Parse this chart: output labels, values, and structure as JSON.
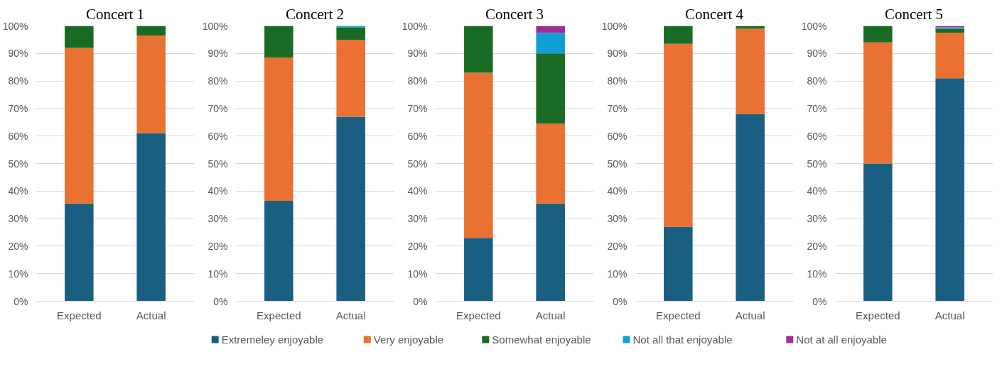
{
  "chart_data": [
    {
      "type": "bar",
      "title": "Concert 1",
      "stacked": true,
      "categories": [
        "Expected",
        "Actual"
      ],
      "ylim": [
        0,
        100
      ],
      "grid": "y",
      "yticks": [
        {
          "value": 0,
          "label": "0%"
        },
        {
          "value": 10,
          "label": "10%"
        },
        {
          "value": 20,
          "label": "20%"
        },
        {
          "value": 30,
          "label": "30%"
        },
        {
          "value": 40,
          "label": "40%"
        },
        {
          "value": 50,
          "label": "50%"
        },
        {
          "value": 60,
          "label": "60%"
        },
        {
          "value": 70,
          "label": "70%"
        },
        {
          "value": 80,
          "label": "80%"
        },
        {
          "value": 90,
          "label": "90%"
        },
        {
          "value": 100,
          "label": "100%"
        }
      ],
      "series": [
        {
          "color": "#1a5f82",
          "values": [
            35.5,
            61
          ]
        },
        {
          "color": "#e97132",
          "values": [
            56.5,
            35.5
          ]
        },
        {
          "color": "#196b24",
          "values": [
            8,
            3.5
          ]
        }
      ]
    },
    {
      "type": "bar",
      "title": "Concert 2",
      "stacked": true,
      "categories": [
        "Expected",
        "Actual"
      ],
      "ylim": [
        0,
        100
      ],
      "grid": "y",
      "yticks": [
        {
          "value": 0,
          "label": "0%"
        },
        {
          "value": 10,
          "label": "10%"
        },
        {
          "value": 20,
          "label": "20%"
        },
        {
          "value": 30,
          "label": "30%"
        },
        {
          "value": 40,
          "label": "40%"
        },
        {
          "value": 50,
          "label": "50%"
        },
        {
          "value": 60,
          "label": "60%"
        },
        {
          "value": 70,
          "label": "70%"
        },
        {
          "value": 80,
          "label": "80%"
        },
        {
          "value": 90,
          "label": "90%"
        },
        {
          "value": 100,
          "label": "100%"
        }
      ],
      "series": [
        {
          "color": "#1a5f82",
          "values": [
            36.5,
            67
          ]
        },
        {
          "color": "#e97132",
          "values": [
            52,
            28
          ]
        },
        {
          "color": "#196b24",
          "values": [
            11.5,
            4.5
          ]
        },
        {
          "color": "#0f9ed5",
          "values": [
            0,
            0.5
          ]
        }
      ]
    },
    {
      "type": "bar",
      "title": "Concert 3",
      "stacked": true,
      "categories": [
        "Expected",
        "Actual"
      ],
      "ylim": [
        0,
        100
      ],
      "grid": "y",
      "legend": "bottom",
      "yticks": [
        {
          "value": 0,
          "label": "0%"
        },
        {
          "value": 10,
          "label": "10%"
        },
        {
          "value": 20,
          "label": "20%"
        },
        {
          "value": 30,
          "label": "30%"
        },
        {
          "value": 40,
          "label": "40%"
        },
        {
          "value": 50,
          "label": "50%"
        },
        {
          "value": 60,
          "label": "60%"
        },
        {
          "value": 70,
          "label": "70%"
        },
        {
          "value": 80,
          "label": "80%"
        },
        {
          "value": 90,
          "label": "90%"
        },
        {
          "value": 100,
          "label": "100%"
        }
      ],
      "series": [
        {
          "name": "Extremeley enjoyable",
          "color": "#1a5f82",
          "values": [
            23,
            35.5
          ]
        },
        {
          "name": "Very enjoyable",
          "color": "#e97132",
          "values": [
            60,
            29
          ]
        },
        {
          "name": "Somewhat enjoyable",
          "color": "#196b24",
          "values": [
            17,
            25.5
          ]
        },
        {
          "name": "Not all that enjoyable",
          "color": "#0f9ed5",
          "values": [
            0,
            7.5
          ]
        },
        {
          "name": "Not at all enjoyable",
          "color": "#a02b93",
          "values": [
            0,
            2.5
          ]
        }
      ]
    },
    {
      "type": "bar",
      "title": "Concert 4",
      "stacked": true,
      "categories": [
        "Expected",
        "Actual"
      ],
      "ylim": [
        0,
        100
      ],
      "grid": "y",
      "yticks": [
        {
          "value": 0,
          "label": "0%"
        },
        {
          "value": 10,
          "label": "10%"
        },
        {
          "value": 20,
          "label": "20%"
        },
        {
          "value": 30,
          "label": "30%"
        },
        {
          "value": 40,
          "label": "40%"
        },
        {
          "value": 50,
          "label": "50%"
        },
        {
          "value": 60,
          "label": "60%"
        },
        {
          "value": 70,
          "label": "70%"
        },
        {
          "value": 80,
          "label": "80%"
        },
        {
          "value": 90,
          "label": "90%"
        },
        {
          "value": 100,
          "label": "100%"
        }
      ],
      "series": [
        {
          "color": "#1a5f82",
          "values": [
            27,
            68
          ]
        },
        {
          "color": "#e97132",
          "values": [
            66.5,
            31
          ]
        },
        {
          "color": "#196b24",
          "values": [
            6.5,
            1
          ]
        }
      ]
    },
    {
      "type": "bar",
      "title": "Concert 5",
      "stacked": true,
      "categories": [
        "Expected",
        "Actual"
      ],
      "ylim": [
        0,
        100
      ],
      "grid": "y",
      "yticks": [
        {
          "value": 0,
          "label": "0%"
        },
        {
          "value": 10,
          "label": "10%"
        },
        {
          "value": 20,
          "label": "20%"
        },
        {
          "value": 30,
          "label": "30%"
        },
        {
          "value": 40,
          "label": "40%"
        },
        {
          "value": 50,
          "label": "50%"
        },
        {
          "value": 60,
          "label": "60%"
        },
        {
          "value": 70,
          "label": "70%"
        },
        {
          "value": 80,
          "label": "80%"
        },
        {
          "value": 90,
          "label": "90%"
        },
        {
          "value": 100,
          "label": "100%"
        }
      ],
      "series": [
        {
          "color": "#1a5f82",
          "values": [
            50,
            81
          ]
        },
        {
          "color": "#e97132",
          "values": [
            44,
            16.5
          ]
        },
        {
          "color": "#196b24",
          "values": [
            6,
            1.5
          ]
        },
        {
          "color": "#0f9ed5",
          "values": [
            0,
            0.5
          ]
        },
        {
          "color": "#a02b93",
          "values": [
            0,
            0.5
          ]
        }
      ]
    }
  ]
}
